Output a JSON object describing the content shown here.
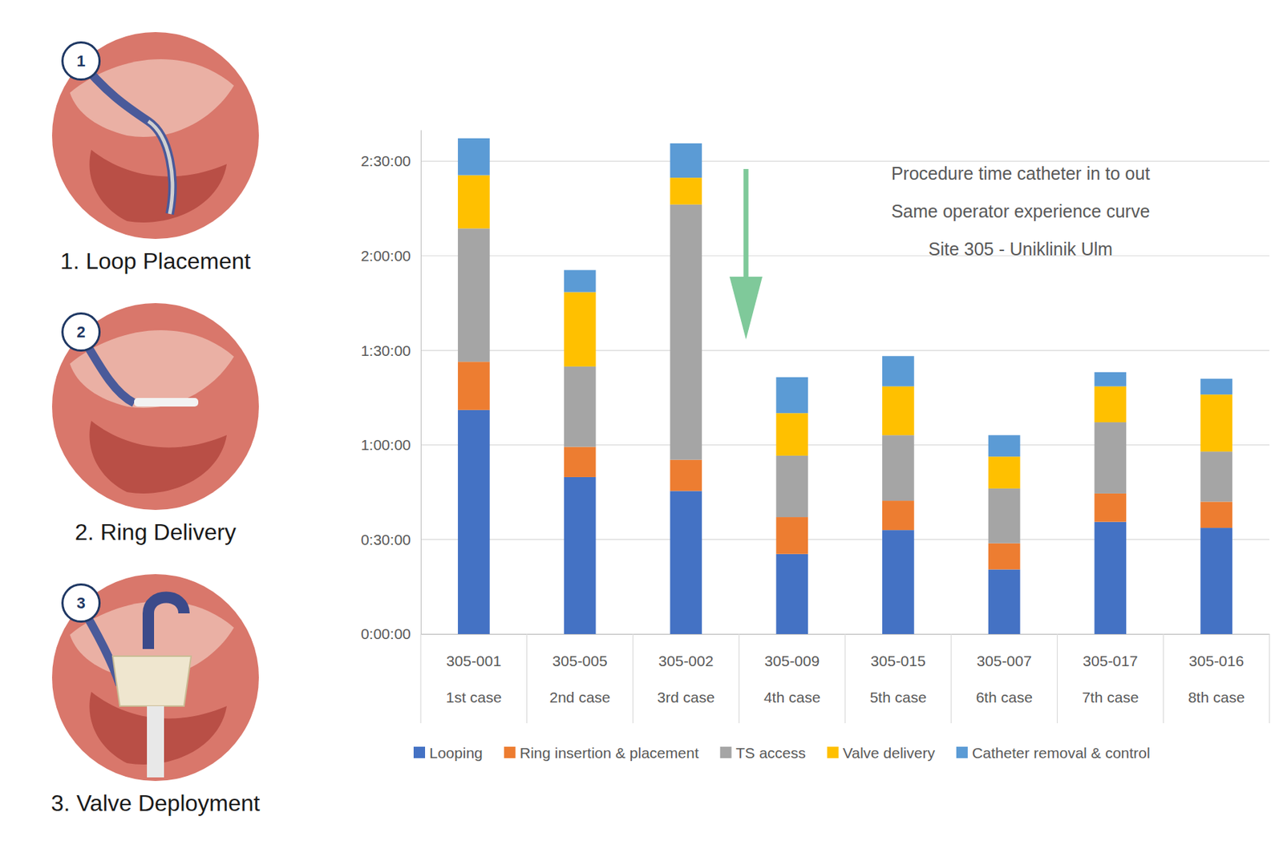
{
  "chart_data": {
    "type": "bar",
    "stacked": true,
    "grid": true,
    "legend": "bottom",
    "annotations": [
      "Procedure time catheter in to out",
      "Same operator experience curve",
      "Site 305 - Uniklinik Ulm"
    ],
    "categories": [
      "305-001",
      "305-005",
      "305-002",
      "305-009",
      "305-015",
      "305-007",
      "305-017",
      "305-016"
    ],
    "subcategories": [
      "1st case",
      "2nd case",
      "3rd case",
      "4th case",
      "5th case",
      "6th case",
      "7th case",
      "8th case"
    ],
    "series": [
      {
        "name": "Looping",
        "color": "#4472c4",
        "values": [
          71.1,
          49.8,
          45.4,
          25.4,
          33.0,
          20.5,
          35.6,
          33.7
        ]
      },
      {
        "name": "Ring insertion & placement",
        "color": "#ed7d31",
        "values": [
          15.3,
          9.6,
          9.9,
          11.7,
          9.3,
          8.3,
          9.0,
          8.3
        ]
      },
      {
        "name": "TS access",
        "color": "#a5a5a5",
        "values": [
          42.3,
          25.5,
          81.0,
          19.5,
          20.8,
          17.4,
          22.6,
          15.9
        ]
      },
      {
        "name": "Valve delivery",
        "color": "#ffc000",
        "values": [
          16.9,
          23.6,
          8.5,
          13.5,
          15.5,
          10.1,
          11.4,
          18.1
        ]
      },
      {
        "name": "Catheter removal & control",
        "color": "#5b9bd5",
        "values": [
          11.7,
          7.0,
          10.9,
          11.4,
          9.6,
          6.8,
          4.5,
          5.0
        ]
      }
    ],
    "ylim": [
      0,
      160
    ],
    "yticks": [
      {
        "value": 0,
        "label": "0:00:00"
      },
      {
        "value": 30,
        "label": "0:30:00"
      },
      {
        "value": 60,
        "label": "1:00:00"
      },
      {
        "value": 90,
        "label": "1:30:00"
      },
      {
        "value": 120,
        "label": "2:00:00"
      },
      {
        "value": 150,
        "label": "2:30:00"
      }
    ]
  },
  "illustrations": [
    {
      "number": 1,
      "caption": "1. Loop Placement"
    },
    {
      "number": 2,
      "caption": "2. Ring Delivery"
    },
    {
      "number": 3,
      "caption": "3. Valve Deployment"
    }
  ]
}
